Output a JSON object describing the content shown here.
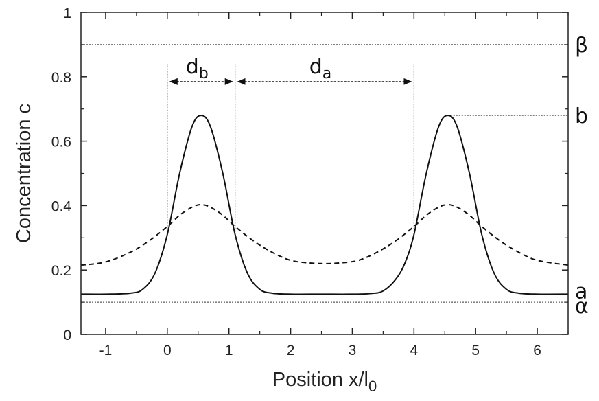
{
  "chart_data": {
    "type": "line",
    "title": "",
    "xlabel": "Position  x/l",
    "xlabel_sub": "0",
    "ylabel": "Concentration  c",
    "xlim": [
      -1.4,
      6.5
    ],
    "ylim": [
      0,
      1
    ],
    "xticks": [
      -1,
      0,
      1,
      2,
      3,
      4,
      5,
      6
    ],
    "xtick_labels": [
      "-1",
      "0",
      "1",
      "2",
      "3",
      "4",
      "5",
      "6"
    ],
    "yticks": [
      0,
      0.2,
      0.4,
      0.6,
      0.8,
      1
    ],
    "ytick_labels": [
      "0",
      "0.2",
      "0.4",
      "0.6",
      "0.8",
      "1"
    ],
    "grid": false,
    "series": [
      {
        "style": "solid",
        "x": [
          -1.4,
          -1.0,
          -0.6,
          -0.4,
          -0.2,
          0.0,
          0.2,
          0.4,
          0.55,
          0.7,
          0.9,
          1.1,
          1.3,
          1.5,
          1.7,
          2.0,
          2.5,
          3.0,
          3.3,
          3.5,
          3.7,
          3.85,
          4.0,
          4.2,
          4.4,
          4.55,
          4.7,
          4.9,
          5.1,
          5.3,
          5.5,
          5.7,
          6.0,
          6.5
        ],
        "y": [
          0.125,
          0.125,
          0.128,
          0.14,
          0.19,
          0.31,
          0.5,
          0.645,
          0.68,
          0.645,
          0.5,
          0.31,
          0.19,
          0.14,
          0.128,
          0.125,
          0.125,
          0.125,
          0.127,
          0.135,
          0.17,
          0.22,
          0.31,
          0.5,
          0.645,
          0.68,
          0.645,
          0.5,
          0.31,
          0.19,
          0.14,
          0.128,
          0.125,
          0.125
        ]
      },
      {
        "style": "dashed",
        "x": [
          -1.4,
          -1.0,
          -0.6,
          -0.3,
          0.0,
          0.2,
          0.4,
          0.55,
          0.7,
          0.9,
          1.1,
          1.4,
          1.7,
          2.0,
          2.3,
          2.55,
          2.8,
          3.1,
          3.4,
          3.7,
          4.0,
          4.2,
          4.4,
          4.55,
          4.7,
          4.9,
          5.1,
          5.4,
          5.7,
          6.0,
          6.5
        ],
        "y": [
          0.215,
          0.225,
          0.255,
          0.29,
          0.335,
          0.37,
          0.395,
          0.403,
          0.395,
          0.37,
          0.335,
          0.29,
          0.255,
          0.23,
          0.222,
          0.22,
          0.222,
          0.23,
          0.255,
          0.29,
          0.335,
          0.37,
          0.395,
          0.403,
          0.395,
          0.37,
          0.335,
          0.29,
          0.255,
          0.23,
          0.215
        ]
      }
    ],
    "reference_lines": [
      {
        "axis": "y",
        "value": 0.9,
        "label": "β"
      },
      {
        "axis": "y",
        "value": 0.1,
        "label": "α"
      }
    ],
    "right_labels": [
      {
        "value": 0.9,
        "text": "β"
      },
      {
        "value": 0.68,
        "text": "b"
      },
      {
        "value": 0.135,
        "text": "a"
      },
      {
        "value": 0.09,
        "text": "α"
      }
    ],
    "guides": [
      {
        "type": "vline",
        "x": 0.0,
        "y_from": 0.31,
        "y_to": 0.84
      },
      {
        "type": "vline",
        "x": 1.1,
        "y_from": 0.31,
        "y_to": 0.84
      },
      {
        "type": "vline",
        "x": 4.0,
        "y_from": 0.31,
        "y_to": 0.84
      },
      {
        "type": "hline",
        "y": 0.68,
        "x_from": 4.55,
        "x_to": 6.5
      }
    ],
    "dimension_arrows": [
      {
        "name": "db",
        "x_from": 0.0,
        "x_to": 1.1,
        "y": 0.785,
        "label": "d",
        "label_sub": "b"
      },
      {
        "name": "da",
        "x_from": 1.1,
        "x_to": 4.0,
        "y": 0.785,
        "label": "d",
        "label_sub": "a"
      }
    ]
  }
}
